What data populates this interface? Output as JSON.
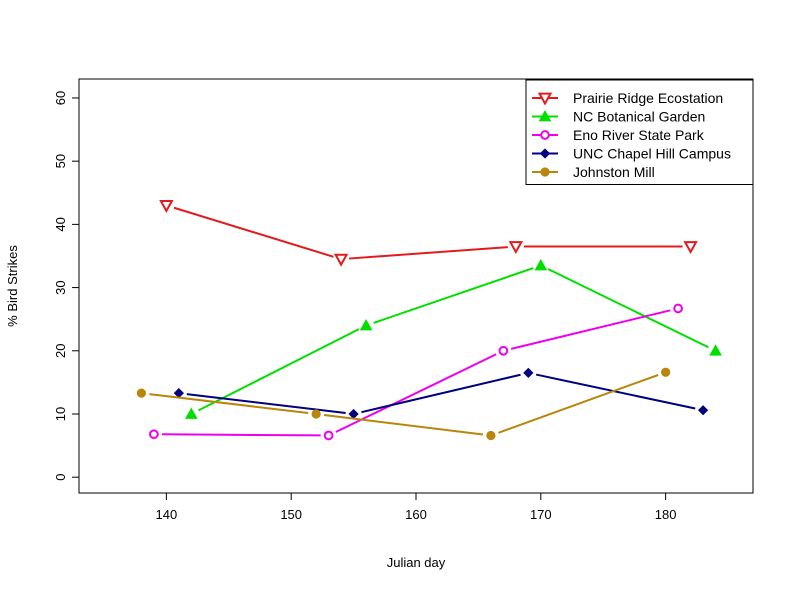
{
  "chart_data": {
    "type": "line",
    "title": "",
    "xlabel": "Julian day",
    "ylabel": "% Bird Strikes",
    "xlim": [
      133,
      187
    ],
    "ylim": [
      -2.5,
      63
    ],
    "xticks": [
      140,
      150,
      160,
      170,
      180
    ],
    "yticks": [
      0,
      10,
      20,
      30,
      40,
      50,
      60
    ],
    "grid": false,
    "legend_position": "top-right",
    "series": [
      {
        "name": "Prairie Ridge Ecostation",
        "color": "#e41a1c",
        "marker": "triangle-down-open",
        "x": [
          140,
          154,
          168,
          182
        ],
        "y": [
          43,
          34.5,
          36.5,
          36.5
        ]
      },
      {
        "name": "NC Botanical Garden",
        "color": "#00e000",
        "marker": "triangle-up-filled",
        "x": [
          142,
          156,
          170,
          184
        ],
        "y": [
          10,
          24,
          33.5,
          20
        ]
      },
      {
        "name": "Eno River State Park",
        "color": "#ee00ee",
        "marker": "circle-open",
        "x": [
          139,
          153,
          167,
          181
        ],
        "y": [
          6.8,
          6.6,
          20,
          26.7
        ]
      },
      {
        "name": "UNC Chapel Hill Campus",
        "color": "#000080",
        "marker": "diamond-filled",
        "x": [
          141,
          155,
          169,
          183
        ],
        "y": [
          13.3,
          10,
          16.5,
          10.6
        ]
      },
      {
        "name": "Johnston Mill",
        "color": "#b8860b",
        "marker": "circle-filled",
        "x": [
          138,
          152,
          166,
          180
        ],
        "y": [
          13.3,
          10,
          6.6,
          16.6
        ]
      }
    ]
  }
}
